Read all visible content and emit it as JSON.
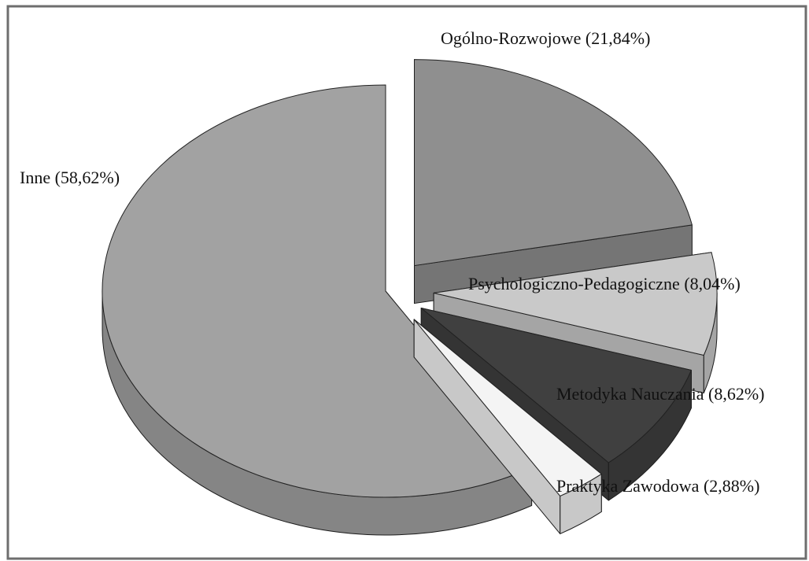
{
  "chart_data": {
    "type": "pie",
    "categories": [
      "Ogólno-Rozwojowe",
      "Psychologiczno-Pedagogiczne",
      "Metodyka Nauczania",
      "Praktyka Zawodowa",
      "Inne"
    ],
    "values": [
      21.84,
      8.04,
      8.62,
      2.88,
      58.62
    ],
    "value_labels": [
      "(21,84%)",
      "(8,04%)",
      "(8,62%)",
      "(2,88%)",
      "(58,62%)"
    ],
    "colors": [
      "#8f8f8f",
      "#c9c9c9",
      "#404040",
      "#f4f4f4",
      "#a2a2a2"
    ],
    "three_d": true
  }
}
